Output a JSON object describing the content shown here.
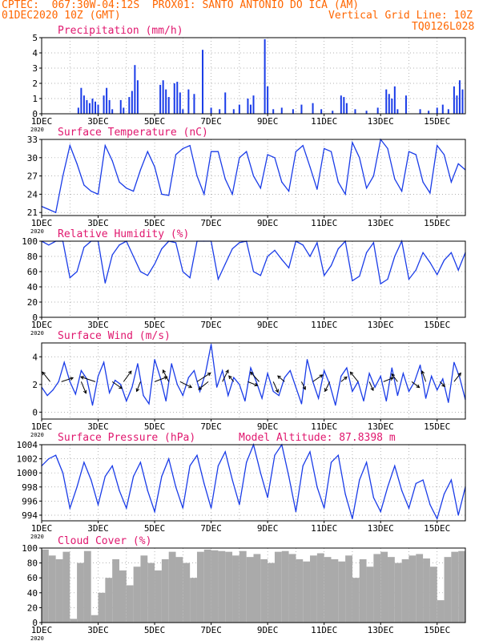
{
  "header": {
    "station": "CPTEC:  067:30W-04:12S  PROX01: SANTO ANTONIO DO ICA (AM)",
    "date": "01DEC2020 10Z (GMT)",
    "grid_note": "Vertical Grid Line: 10Z",
    "code": "TQ0126L028"
  },
  "x_axis": {
    "ticks": [
      "1DEC",
      "3DEC",
      "5DEC",
      "7DEC",
      "9DEC",
      "11DEC",
      "13DEC",
      "15DEC"
    ],
    "year_label": "2020",
    "day_range": [
      1,
      16
    ]
  },
  "colors": {
    "line": "#1a3ce8",
    "title": "#e0176e",
    "header": "#ff6600",
    "cloud": "#aaaaaa",
    "wind_vector": "#000000"
  },
  "chart_data": [
    {
      "id": "precip",
      "type": "bar",
      "title": "Precipitation (mm/h)",
      "ylim": [
        0,
        5
      ],
      "yticks": [
        "0",
        "1",
        "2",
        "3",
        "4",
        "5"
      ],
      "x": [
        2.3,
        2.4,
        2.5,
        2.6,
        2.7,
        2.8,
        2.9,
        3.0,
        3.2,
        3.3,
        3.4,
        3.5,
        3.8,
        3.9,
        4.1,
        4.2,
        4.3,
        4.4,
        5.2,
        5.3,
        5.4,
        5.5,
        5.7,
        5.8,
        5.9,
        6.0,
        6.2,
        6.4,
        6.7,
        7.0,
        7.3,
        7.5,
        7.8,
        8.0,
        8.3,
        8.4,
        8.5,
        8.9,
        9.0,
        9.2,
        9.5,
        9.9,
        10.2,
        10.6,
        10.9,
        11.3,
        11.6,
        11.7,
        11.8,
        12.1,
        12.5,
        12.9,
        13.2,
        13.3,
        13.4,
        13.5,
        13.6,
        13.9,
        14.4,
        14.7,
        15.0,
        15.2,
        15.4,
        15.6,
        15.7,
        15.8,
        15.9
      ],
      "values": [
        0.4,
        1.7,
        1.2,
        0.9,
        0.7,
        1.0,
        0.8,
        0.6,
        1.2,
        1.7,
        0.9,
        0.3,
        0.9,
        0.4,
        1.1,
        1.5,
        3.2,
        2.2,
        1.9,
        2.2,
        1.6,
        1.1,
        2.0,
        2.1,
        1.4,
        0.3,
        1.6,
        1.3,
        4.2,
        0.4,
        0.3,
        1.4,
        0.3,
        0.6,
        1.0,
        0.6,
        1.2,
        4.9,
        1.8,
        0.3,
        0.4,
        0.3,
        0.6,
        0.7,
        0.3,
        0.2,
        1.2,
        1.1,
        0.7,
        0.3,
        0.2,
        0.4,
        1.6,
        1.3,
        1.0,
        1.8,
        0.3,
        1.2,
        0.3,
        0.2,
        0.4,
        0.6,
        0.3,
        1.8,
        1.2,
        2.2,
        1.6
      ]
    },
    {
      "id": "temp",
      "type": "line",
      "title": "Surface Temperature (nC)",
      "ylim": [
        20.5,
        33
      ],
      "yticks": [
        "21",
        "24",
        "27",
        "30",
        "33"
      ],
      "x": [
        1.0,
        1.25,
        1.5,
        1.75,
        2.0,
        2.25,
        2.5,
        2.75,
        3.0,
        3.25,
        3.5,
        3.75,
        4.0,
        4.25,
        4.5,
        4.75,
        5.0,
        5.25,
        5.5,
        5.75,
        6.0,
        6.25,
        6.5,
        6.75,
        7.0,
        7.25,
        7.5,
        7.75,
        8.0,
        8.25,
        8.5,
        8.75,
        9.0,
        9.25,
        9.5,
        9.75,
        10.0,
        10.25,
        10.5,
        10.75,
        11.0,
        11.25,
        11.5,
        11.75,
        12.0,
        12.25,
        12.5,
        12.75,
        13.0,
        13.25,
        13.5,
        13.75,
        14.0,
        14.25,
        14.5,
        14.75,
        15.0,
        15.25,
        15.5,
        15.75,
        16.0
      ],
      "values": [
        22.0,
        21.5,
        21.0,
        27.0,
        32.0,
        29.0,
        25.5,
        24.5,
        24.0,
        32.0,
        29.5,
        26.0,
        25.0,
        24.5,
        28.0,
        31.0,
        28.5,
        24.0,
        23.8,
        30.5,
        31.5,
        32.0,
        27.0,
        24.0,
        31.0,
        31.0,
        26.5,
        24.0,
        30.0,
        31.0,
        27.0,
        25.0,
        30.5,
        30.0,
        26.0,
        24.5,
        31.0,
        32.0,
        28.5,
        24.8,
        31.5,
        31.0,
        26.0,
        24.0,
        32.5,
        30.0,
        25.0,
        27.0,
        33.0,
        31.5,
        26.5,
        24.5,
        31.0,
        30.5,
        26.0,
        24.2,
        32.0,
        30.5,
        26.0,
        29.0,
        28.0
      ]
    },
    {
      "id": "rh",
      "type": "line",
      "title": "Relative Humidity (%)",
      "ylim": [
        0,
        100
      ],
      "yticks": [
        "0",
        "20",
        "40",
        "60",
        "80",
        "100"
      ],
      "x": [
        1.0,
        1.25,
        1.5,
        1.75,
        2.0,
        2.25,
        2.5,
        2.75,
        3.0,
        3.25,
        3.5,
        3.75,
        4.0,
        4.25,
        4.5,
        4.75,
        5.0,
        5.25,
        5.5,
        5.75,
        6.0,
        6.25,
        6.5,
        6.75,
        7.0,
        7.25,
        7.5,
        7.75,
        8.0,
        8.25,
        8.5,
        8.75,
        9.0,
        9.25,
        9.5,
        9.75,
        10.0,
        10.25,
        10.5,
        10.75,
        11.0,
        11.25,
        11.5,
        11.75,
        12.0,
        12.25,
        12.5,
        12.75,
        13.0,
        13.25,
        13.5,
        13.75,
        14.0,
        14.25,
        14.5,
        14.75,
        15.0,
        15.25,
        15.5,
        15.75,
        16.0
      ],
      "values": [
        100,
        95,
        100,
        100,
        52,
        60,
        92,
        100,
        100,
        45,
        82,
        95,
        100,
        80,
        60,
        55,
        70,
        90,
        100,
        98,
        60,
        52,
        100,
        100,
        100,
        50,
        70,
        90,
        98,
        100,
        60,
        55,
        80,
        88,
        76,
        65,
        100,
        95,
        80,
        98,
        55,
        68,
        90,
        100,
        48,
        54,
        85,
        98,
        44,
        50,
        80,
        100,
        50,
        62,
        85,
        72,
        56,
        75,
        85,
        62,
        85
      ]
    },
    {
      "id": "wind",
      "type": "line",
      "title": "Surface Wind (m/s)",
      "ylim": [
        -0.5,
        5
      ],
      "yticks": [
        "0",
        "2",
        "4"
      ],
      "x": [
        1.0,
        1.2,
        1.4,
        1.6,
        1.8,
        2.0,
        2.2,
        2.4,
        2.6,
        2.8,
        3.0,
        3.2,
        3.4,
        3.6,
        3.8,
        4.0,
        4.2,
        4.4,
        4.6,
        4.8,
        5.0,
        5.2,
        5.4,
        5.6,
        5.8,
        6.0,
        6.2,
        6.4,
        6.6,
        6.8,
        7.0,
        7.2,
        7.4,
        7.6,
        7.8,
        8.0,
        8.2,
        8.4,
        8.6,
        8.8,
        9.0,
        9.2,
        9.4,
        9.6,
        9.8,
        10.0,
        10.2,
        10.4,
        10.6,
        10.8,
        11.0,
        11.2,
        11.4,
        11.6,
        11.8,
        12.0,
        12.2,
        12.4,
        12.6,
        12.8,
        13.0,
        13.2,
        13.4,
        13.6,
        13.8,
        14.0,
        14.2,
        14.4,
        14.6,
        14.8,
        15.0,
        15.2,
        15.4,
        15.6,
        15.8,
        16.0
      ],
      "values": [
        1.8,
        1.2,
        1.6,
        2.2,
        3.6,
        2.2,
        1.3,
        3.0,
        2.4,
        0.5,
        2.6,
        3.6,
        1.4,
        2.3,
        2.0,
        0.8,
        1.8,
        3.5,
        1.2,
        0.6,
        3.8,
        2.5,
        0.8,
        3.5,
        2.0,
        1.2,
        2.5,
        3.0,
        1.5,
        2.8,
        4.9,
        1.8,
        3.0,
        1.2,
        2.5,
        2.0,
        0.8,
        3.2,
        2.2,
        1.0,
        2.8,
        1.5,
        1.2,
        2.5,
        3.0,
        1.8,
        0.6,
        3.8,
        2.2,
        1.0,
        3.0,
        2.0,
        0.5,
        2.6,
        3.2,
        1.5,
        2.2,
        0.8,
        2.8,
        1.8,
        2.6,
        0.8,
        3.2,
        1.2,
        2.8,
        1.5,
        2.2,
        3.4,
        1.0,
        2.6,
        1.6,
        2.4,
        0.7,
        3.6,
        2.5,
        0.9
      ]
    },
    {
      "id": "pressure",
      "type": "line",
      "title": "Surface Pressure (hPa)",
      "ylim": [
        993.2,
        1004
      ],
      "yticks": [
        "994",
        "996",
        "998",
        "1000",
        "1002",
        "1004"
      ],
      "annotation": "Model Altitude: 87.8398 m",
      "x": [
        1.0,
        1.25,
        1.5,
        1.75,
        2.0,
        2.25,
        2.5,
        2.75,
        3.0,
        3.25,
        3.5,
        3.75,
        4.0,
        4.25,
        4.5,
        4.75,
        5.0,
        5.25,
        5.5,
        5.75,
        6.0,
        6.25,
        6.5,
        6.75,
        7.0,
        7.25,
        7.5,
        7.75,
        8.0,
        8.25,
        8.5,
        8.75,
        9.0,
        9.25,
        9.5,
        9.75,
        10.0,
        10.25,
        10.5,
        10.75,
        11.0,
        11.25,
        11.5,
        11.75,
        12.0,
        12.25,
        12.5,
        12.75,
        13.0,
        13.25,
        13.5,
        13.75,
        14.0,
        14.25,
        14.5,
        14.75,
        15.0,
        15.25,
        15.5,
        15.75,
        16.0
      ],
      "values": [
        1001.0,
        1002.0,
        1002.5,
        1000.0,
        995.0,
        998.0,
        1001.5,
        999.0,
        995.5,
        999.5,
        1001.0,
        997.5,
        995.0,
        999.5,
        1001.5,
        997.5,
        994.5,
        999.5,
        1002.0,
        998.0,
        995.0,
        1001.0,
        1002.5,
        998.5,
        995.0,
        1001.0,
        1003.0,
        999.0,
        995.5,
        1001.5,
        1004.0,
        1000.0,
        996.5,
        1002.5,
        1004.0,
        999.5,
        994.5,
        1001.0,
        1003.0,
        998.0,
        995.0,
        1001.5,
        1002.5,
        997.0,
        993.5,
        999.0,
        1001.5,
        996.5,
        994.5,
        998.0,
        1001.0,
        997.5,
        995.0,
        998.5,
        999.0,
        995.5,
        993.5,
        997.0,
        999.0,
        994.0,
        998.0
      ]
    },
    {
      "id": "cloud",
      "type": "area",
      "title": "Cloud Cover (%)",
      "ylim": [
        0,
        100
      ],
      "yticks": [
        "0",
        "20",
        "40",
        "60",
        "80",
        "100"
      ],
      "x": [
        1.0,
        1.25,
        1.5,
        1.75,
        2.0,
        2.25,
        2.5,
        2.75,
        3.0,
        3.25,
        3.5,
        3.75,
        4.0,
        4.25,
        4.5,
        4.75,
        5.0,
        5.25,
        5.5,
        5.75,
        6.0,
        6.25,
        6.5,
        6.75,
        7.0,
        7.25,
        7.5,
        7.75,
        8.0,
        8.25,
        8.5,
        8.75,
        9.0,
        9.25,
        9.5,
        9.75,
        10.0,
        10.25,
        10.5,
        10.75,
        11.0,
        11.25,
        11.5,
        11.75,
        12.0,
        12.25,
        12.5,
        12.75,
        13.0,
        13.25,
        13.5,
        13.75,
        14.0,
        14.25,
        14.5,
        14.75,
        15.0,
        15.25,
        15.5,
        15.75,
        16.0
      ],
      "values": [
        98,
        90,
        85,
        95,
        5,
        80,
        96,
        10,
        40,
        60,
        85,
        70,
        50,
        75,
        90,
        80,
        70,
        85,
        95,
        88,
        80,
        60,
        95,
        98,
        97,
        96,
        95,
        90,
        96,
        88,
        92,
        85,
        80,
        95,
        96,
        92,
        85,
        82,
        90,
        93,
        88,
        85,
        82,
        90,
        60,
        85,
        75,
        92,
        95,
        88,
        80,
        85,
        90,
        92,
        86,
        75,
        30,
        88,
        95,
        96,
        98
      ]
    }
  ],
  "wind_vectors": {
    "days": [
      1.3,
      1.7,
      2.4,
      2.9,
      3.5,
      3.9,
      4.5,
      5.0,
      5.5,
      5.9,
      6.5,
      6.9,
      7.4,
      7.8,
      8.3,
      8.7,
      9.2,
      9.6,
      10.2,
      10.6,
      11.2,
      11.6,
      12.2,
      12.6,
      13.1,
      13.6,
      14.1,
      14.6,
      15.1,
      15.6
    ],
    "u": [
      -0.8,
      1.2,
      0.5,
      -1.5,
      1.0,
      0.8,
      -0.4,
      1.3,
      -0.6,
      1.2,
      1.4,
      -1.0,
      0.6,
      -0.5,
      1.0,
      -0.9,
      0.5,
      -0.7,
      0.4,
      1.0,
      -0.5,
      0.6,
      -0.8,
      0.4,
      1.0,
      -0.6,
      0.8,
      -0.4,
      0.5,
      0.7
    ],
    "v": [
      1.0,
      0.4,
      -1.2,
      0.5,
      -0.7,
      1.1,
      -1.0,
      0.5,
      1.2,
      -0.6,
      0.9,
      -0.8,
      1.2,
      0.6,
      -0.4,
      1.0,
      -1.1,
      0.6,
      -0.8,
      0.7,
      -1.0,
      0.5,
      1.0,
      -0.9,
      0.4,
      0.8,
      -0.6,
      1.1,
      -0.5,
      0.9
    ]
  }
}
